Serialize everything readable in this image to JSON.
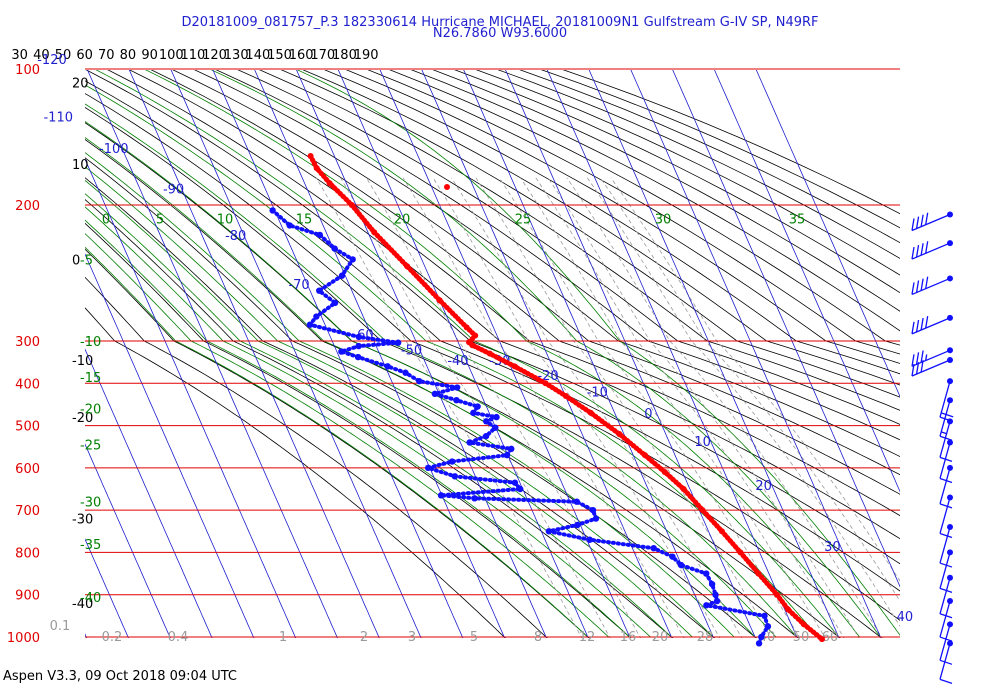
{
  "title": {
    "line1": "D20181009_081757_P.3 182330614 Hurricane MICHAEL, 20181009N1 Gulfstream G-IV SP, N49RF",
    "line2": "N26.7860 W93.6000"
  },
  "footer": "Aspen V3.3, 09 Oct 2018  09:04 UTC",
  "colors": {
    "isobar": "#e00000",
    "isotherm": "#1f1fd0",
    "dry_adiabat": "#000000",
    "moist_adiabat": "#008000",
    "mixing_ratio": "#9a9a9a",
    "temperature": "#ff0000",
    "dewpoint": "#1010ff"
  },
  "chart_data": {
    "type": "skew-T log-P sounding",
    "pressure_axis": {
      "unit": "hPa",
      "scale": "log",
      "ticks": [
        "100",
        "200",
        "300",
        "400",
        "500",
        "600",
        "700",
        "800",
        "900",
        "1000"
      ]
    },
    "theta_top_labels": [
      "30",
      "40",
      "50",
      "60",
      "70",
      "80",
      "90",
      "100",
      "110",
      "120",
      "130",
      "140",
      "150",
      "160",
      "170",
      "180",
      "190"
    ],
    "temperature_labels": [
      "-120",
      "-110",
      "-100",
      "-90",
      "-80",
      "-70",
      "-60",
      "-50",
      "-40",
      "-30",
      "-20",
      "-10",
      "0",
      "10",
      "20",
      "30",
      "40"
    ],
    "dry_adiabat_labels": [
      "20",
      "10",
      "0",
      "-10",
      "-20",
      "-30",
      "-40"
    ],
    "moist_adiabat_labels": [
      {
        "t": "0",
        "p": 210
      },
      {
        "t": "5",
        "p": 210
      },
      {
        "t": "10",
        "p": 210
      },
      {
        "t": "15",
        "p": 210
      },
      {
        "t": "20",
        "p": 210
      },
      {
        "t": "25",
        "p": 210
      },
      {
        "t": "30",
        "p": 210
      },
      {
        "t": "35",
        "p": 210
      },
      {
        "t": "-5",
        "p": 240
      },
      {
        "t": "-10",
        "p": 300
      },
      {
        "t": "-15",
        "p": 385
      },
      {
        "t": "-20",
        "p": 460
      },
      {
        "t": "-25",
        "p": 545
      },
      {
        "t": "-30",
        "p": 680
      },
      {
        "t": "-35",
        "p": 780
      },
      {
        "t": "-40",
        "p": 905
      }
    ],
    "mixing_ratio_labels": [
      "0.1",
      "0.2",
      "0.4",
      "1",
      "2",
      "3",
      "5",
      "8",
      "12",
      "16",
      "20",
      "28",
      "40",
      "50",
      "60"
    ],
    "temperature_profile": [
      {
        "p": 164,
        "t": -55.7
      },
      {
        "p": 173,
        "t": -55.5
      },
      {
        "p": 184,
        "t": -54.0
      },
      {
        "p": 200,
        "t": -51.0
      },
      {
        "p": 220,
        "t": -48.5
      },
      {
        "p": 245,
        "t": -44.2
      },
      {
        "p": 270,
        "t": -40.0
      },
      {
        "p": 290,
        "t": -36.4
      },
      {
        "p": 296,
        "t": -35.2
      },
      {
        "p": 303,
        "t": -37.4
      },
      {
        "p": 310,
        "t": -36.9
      },
      {
        "p": 330,
        "t": -33.6
      },
      {
        "p": 360,
        "t": -29.0
      },
      {
        "p": 400,
        "t": -23.4
      },
      {
        "p": 430,
        "t": -19.9
      },
      {
        "p": 470,
        "t": -15.7
      },
      {
        "p": 520,
        "t": -11.1
      },
      {
        "p": 570,
        "t": -7.2
      },
      {
        "p": 610,
        "t": -4.2
      },
      {
        "p": 650,
        "t": -1.5
      },
      {
        "p": 700,
        "t": 0.8
      },
      {
        "p": 750,
        "t": 3.2
      },
      {
        "p": 800,
        "t": 5.4
      },
      {
        "p": 850,
        "t": 7.5
      },
      {
        "p": 900,
        "t": 9.7
      },
      {
        "p": 935,
        "t": 10.8
      },
      {
        "p": 970,
        "t": 13.0
      },
      {
        "p": 1005,
        "t": 15.8
      }
    ],
    "dewpoint_profile": [
      {
        "p": 204,
        "t": -70.5
      },
      {
        "p": 215,
        "t": -68.0
      },
      {
        "p": 222,
        "t": -61.8
      },
      {
        "p": 232,
        "t": -59.7
      },
      {
        "p": 240,
        "t": -56.5
      },
      {
        "p": 252,
        "t": -60.8
      },
      {
        "p": 263,
        "t": -67.8
      },
      {
        "p": 272,
        "t": -65.3
      },
      {
        "p": 282,
        "t": -71.2
      },
      {
        "p": 288,
        "t": -73.6
      },
      {
        "p": 297,
        "t": -63.2
      },
      {
        "p": 304,
        "t": -54.4
      },
      {
        "p": 312,
        "t": -64.2
      },
      {
        "p": 325,
        "t": -68.9
      },
      {
        "p": 338,
        "t": -65.5
      },
      {
        "p": 360,
        "t": -59.4
      },
      {
        "p": 375,
        "t": -55.8
      },
      {
        "p": 395,
        "t": -53.4
      },
      {
        "p": 410,
        "t": -45.0
      },
      {
        "p": 425,
        "t": -51.0
      },
      {
        "p": 440,
        "t": -46.5
      },
      {
        "p": 455,
        "t": -42.1
      },
      {
        "p": 470,
        "t": -43.8
      },
      {
        "p": 480,
        "t": -38.7
      },
      {
        "p": 490,
        "t": -41.6
      },
      {
        "p": 505,
        "t": -40.1
      },
      {
        "p": 525,
        "t": -43.2
      },
      {
        "p": 540,
        "t": -47.8
      },
      {
        "p": 555,
        "t": -38.5
      },
      {
        "p": 570,
        "t": -40.2
      },
      {
        "p": 585,
        "t": -54.0
      },
      {
        "p": 600,
        "t": -60.4
      },
      {
        "p": 620,
        "t": -54.9
      },
      {
        "p": 635,
        "t": -41.2
      },
      {
        "p": 650,
        "t": -40.6
      },
      {
        "p": 665,
        "t": -60.2
      },
      {
        "p": 672,
        "t": -52.5
      },
      {
        "p": 680,
        "t": -28.4
      },
      {
        "p": 700,
        "t": -25.4
      },
      {
        "p": 720,
        "t": -25.6
      },
      {
        "p": 735,
        "t": -30.7
      },
      {
        "p": 750,
        "t": -38.2
      },
      {
        "p": 770,
        "t": -29.3
      },
      {
        "p": 790,
        "t": -14.9
      },
      {
        "p": 810,
        "t": -11.3
      },
      {
        "p": 830,
        "t": -10.1
      },
      {
        "p": 850,
        "t": -5.0
      },
      {
        "p": 875,
        "t": -4.7
      },
      {
        "p": 900,
        "t": -5.0
      },
      {
        "p": 915,
        "t": -5.3
      },
      {
        "p": 925,
        "t": -8.3
      },
      {
        "p": 950,
        "t": 4.5
      },
      {
        "p": 975,
        "t": 4.2
      },
      {
        "p": 1000,
        "t": 1.5
      },
      {
        "p": 1015,
        "t": 0.3
      }
    ],
    "wind_barbs": [
      {
        "p": 207,
        "barbs": "4"
      },
      {
        "p": 228,
        "barbs": "4"
      },
      {
        "p": 254,
        "barbs": "4"
      },
      {
        "p": 283,
        "barbs": "4"
      },
      {
        "p": 322,
        "barbs": "3.5"
      },
      {
        "p": 345,
        "barbs": "3"
      },
      {
        "p": 395,
        "barbs": "2"
      },
      {
        "p": 440,
        "barbs": "1.5"
      },
      {
        "p": 490,
        "barbs": "1"
      },
      {
        "p": 540,
        "barbs": "1"
      },
      {
        "p": 600,
        "barbs": "1"
      },
      {
        "p": 670,
        "barbs": "1"
      },
      {
        "p": 740,
        "barbs": "1"
      },
      {
        "p": 800,
        "barbs": "1"
      },
      {
        "p": 860,
        "barbs": "1"
      },
      {
        "p": 915,
        "barbs": "1"
      },
      {
        "p": 970,
        "barbs": "1"
      },
      {
        "p": 1015,
        "barbs": "1"
      }
    ]
  }
}
